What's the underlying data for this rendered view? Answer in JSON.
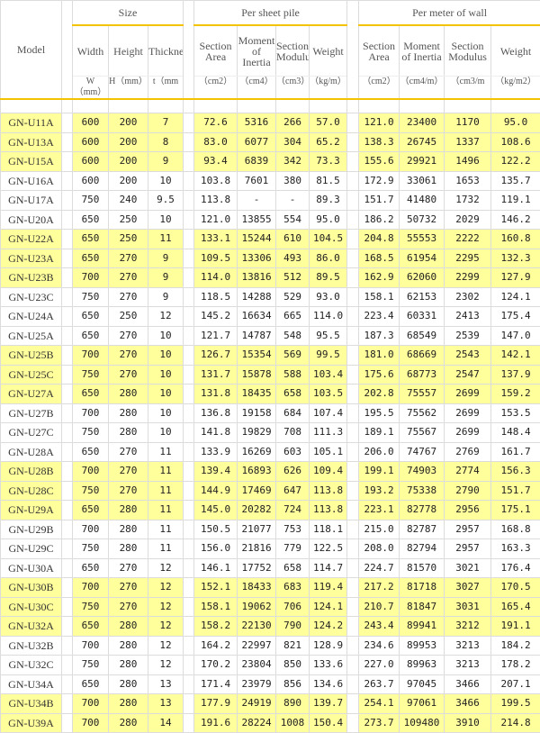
{
  "header": {
    "model": "Model",
    "groups": [
      "Size",
      "Per sheet pile",
      "Per meter of wall"
    ],
    "columns": [
      "Width",
      "Height",
      "Thickness",
      "Section Area",
      "Moment of Inertia",
      "Section Modulus",
      "Weight",
      "Section Area",
      "Moment of Inertia",
      "Section Modulus",
      "Weight"
    ],
    "units": [
      "W（mm）",
      "H（mm）",
      "t（mm",
      "（cm2）",
      "（cm4）",
      "（cm3）",
      "（kg/m）",
      "（cm2）",
      "（cm4/m）",
      "（cm3/m",
      "（kg/m2）"
    ]
  },
  "highlight_color": "#ffff9c",
  "rows": [
    [
      "GN-U11A",
      "600",
      "200",
      "7",
      "72.6",
      "5316",
      "266",
      "57.0",
      "121.0",
      "23400",
      "1170",
      "95.0"
    ],
    [
      "GN-U13A",
      "600",
      "200",
      "8",
      "83.0",
      "6077",
      "304",
      "65.2",
      "138.3",
      "26745",
      "1337",
      "108.6"
    ],
    [
      "GN-U15A",
      "600",
      "200",
      "9",
      "93.4",
      "6839",
      "342",
      "73.3",
      "155.6",
      "29921",
      "1496",
      "122.2"
    ],
    [
      "GN-U16A",
      "600",
      "200",
      "10",
      "103.8",
      "7601",
      "380",
      "81.5",
      "172.9",
      "33061",
      "1653",
      "135.7"
    ],
    [
      "GN-U17A",
      "750",
      "240",
      "9.5",
      "113.8",
      "-",
      "-",
      "89.3",
      "151.7",
      "41480",
      "1732",
      "119.1"
    ],
    [
      "GN-U20A",
      "650",
      "250",
      "10",
      "121.0",
      "13855",
      "554",
      "95.0",
      "186.2",
      "50732",
      "2029",
      "146.2"
    ],
    [
      "GN-U22A",
      "650",
      "250",
      "11",
      "133.1",
      "15244",
      "610",
      "104.5",
      "204.8",
      "55553",
      "2222",
      "160.8"
    ],
    [
      "GN-U23A",
      "650",
      "270",
      "9",
      "109.5",
      "13306",
      "493",
      "86.0",
      "168.5",
      "61954",
      "2295",
      "132.3"
    ],
    [
      "GN-U23B",
      "700",
      "270",
      "9",
      "114.0",
      "13816",
      "512",
      "89.5",
      "162.9",
      "62060",
      "2299",
      "127.9"
    ],
    [
      "GN-U23C",
      "750",
      "270",
      "9",
      "118.5",
      "14288",
      "529",
      "93.0",
      "158.1",
      "62153",
      "2302",
      "124.1"
    ],
    [
      "GN-U24A",
      "650",
      "250",
      "12",
      "145.2",
      "16634",
      "665",
      "114.0",
      "223.4",
      "60331",
      "2413",
      "175.4"
    ],
    [
      "GN-U25A",
      "650",
      "270",
      "10",
      "121.7",
      "14787",
      "548",
      "95.5",
      "187.3",
      "68549",
      "2539",
      "147.0"
    ],
    [
      "GN-U25B",
      "700",
      "270",
      "10",
      "126.7",
      "15354",
      "569",
      "99.5",
      "181.0",
      "68669",
      "2543",
      "142.1"
    ],
    [
      "GN-U25C",
      "750",
      "270",
      "10",
      "131.7",
      "15878",
      "588",
      "103.4",
      "175.6",
      "68773",
      "2547",
      "137.9"
    ],
    [
      "GN-U27A",
      "650",
      "280",
      "10",
      "131.8",
      "18435",
      "658",
      "103.5",
      "202.8",
      "75557",
      "2699",
      "159.2"
    ],
    [
      "GN-U27B",
      "700",
      "280",
      "10",
      "136.8",
      "19158",
      "684",
      "107.4",
      "195.5",
      "75562",
      "2699",
      "153.5"
    ],
    [
      "GN-U27C",
      "750",
      "280",
      "10",
      "141.8",
      "19829",
      "708",
      "111.3",
      "189.1",
      "75567",
      "2699",
      "148.4"
    ],
    [
      "GN-U28A",
      "650",
      "270",
      "11",
      "133.9",
      "16269",
      "603",
      "105.1",
      "206.0",
      "74767",
      "2769",
      "161.7"
    ],
    [
      "GN-U28B",
      "700",
      "270",
      "11",
      "139.4",
      "16893",
      "626",
      "109.4",
      "199.1",
      "74903",
      "2774",
      "156.3"
    ],
    [
      "GN-U28C",
      "750",
      "270",
      "11",
      "144.9",
      "17469",
      "647",
      "113.8",
      "193.2",
      "75338",
      "2790",
      "151.7"
    ],
    [
      "GN-U29A",
      "650",
      "280",
      "11",
      "145.0",
      "20282",
      "724",
      "113.8",
      "223.1",
      "82778",
      "2956",
      "175.1"
    ],
    [
      "GN-U29B",
      "700",
      "280",
      "11",
      "150.5",
      "21077",
      "753",
      "118.1",
      "215.0",
      "82787",
      "2957",
      "168.8"
    ],
    [
      "GN-U29C",
      "750",
      "280",
      "11",
      "156.0",
      "21816",
      "779",
      "122.5",
      "208.0",
      "82794",
      "2957",
      "163.3"
    ],
    [
      "GN-U30A",
      "650",
      "270",
      "12",
      "146.1",
      "17752",
      "658",
      "114.7",
      "224.7",
      "81570",
      "3021",
      "176.4"
    ],
    [
      "GN-U30B",
      "700",
      "270",
      "12",
      "152.1",
      "18433",
      "683",
      "119.4",
      "217.2",
      "81718",
      "3027",
      "170.5"
    ],
    [
      "GN-U30C",
      "750",
      "270",
      "12",
      "158.1",
      "19062",
      "706",
      "124.1",
      "210.7",
      "81847",
      "3031",
      "165.4"
    ],
    [
      "GN-U32A",
      "650",
      "280",
      "12",
      "158.2",
      "22130",
      "790",
      "124.2",
      "243.4",
      "89941",
      "3212",
      "191.1"
    ],
    [
      "GN-U32B",
      "700",
      "280",
      "12",
      "164.2",
      "22997",
      "821",
      "128.9",
      "234.6",
      "89953",
      "3213",
      "184.2"
    ],
    [
      "GN-U32C",
      "750",
      "280",
      "12",
      "170.2",
      "23804",
      "850",
      "133.6",
      "227.0",
      "89963",
      "3213",
      "178.2"
    ],
    [
      "GN-U34A",
      "650",
      "280",
      "13",
      "171.4",
      "23979",
      "856",
      "134.6",
      "263.7",
      "97045",
      "3466",
      "207.1"
    ],
    [
      "GN-U34B",
      "700",
      "280",
      "13",
      "177.9",
      "24919",
      "890",
      "139.7",
      "254.1",
      "97061",
      "3466",
      "199.5"
    ],
    [
      "GN-U39A",
      "700",
      "280",
      "14",
      "191.6",
      "28224",
      "1008",
      "150.4",
      "273.7",
      "109480",
      "3910",
      "214.8"
    ]
  ]
}
